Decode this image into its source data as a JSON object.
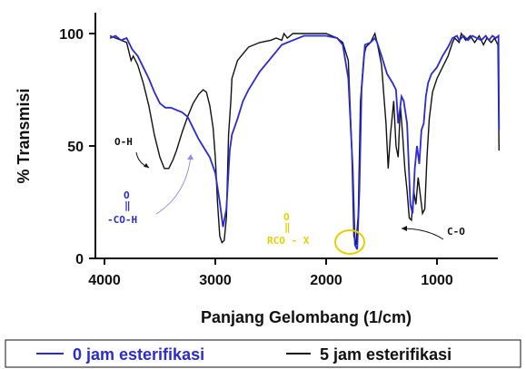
{
  "chart_data": {
    "type": "line",
    "title": "",
    "xlabel": "Panjang Gelombang (1/cm)",
    "ylabel": "% Transmisi",
    "xlim": [
      4000,
      400
    ],
    "ylim": [
      0,
      100
    ],
    "x_ticks": [
      "4000",
      "3000",
      "2000",
      "1000"
    ],
    "y_ticks": [
      "0",
      "50",
      "100"
    ],
    "legend_position": "bottom",
    "series": [
      {
        "name": "0 jam esterifikasi",
        "color": "#2a2ad6",
        "points": [
          [
            3950,
            98
          ],
          [
            3900,
            99
          ],
          [
            3850,
            97
          ],
          [
            3800,
            98
          ],
          [
            3750,
            93
          ],
          [
            3700,
            90
          ],
          [
            3650,
            85
          ],
          [
            3600,
            80
          ],
          [
            3550,
            74
          ],
          [
            3500,
            69
          ],
          [
            3450,
            67
          ],
          [
            3400,
            67
          ],
          [
            3350,
            66
          ],
          [
            3300,
            65
          ],
          [
            3250,
            63
          ],
          [
            3200,
            58
          ],
          [
            3150,
            53
          ],
          [
            3100,
            49
          ],
          [
            3050,
            45
          ],
          [
            3000,
            38
          ],
          [
            2960,
            25
          ],
          [
            2930,
            14
          ],
          [
            2900,
            22
          ],
          [
            2870,
            48
          ],
          [
            2850,
            55
          ],
          [
            2800,
            62
          ],
          [
            2750,
            70
          ],
          [
            2700,
            75
          ],
          [
            2600,
            83
          ],
          [
            2500,
            89
          ],
          [
            2400,
            95
          ],
          [
            2300,
            97
          ],
          [
            2200,
            99
          ],
          [
            2100,
            99
          ],
          [
            2000,
            99
          ],
          [
            1900,
            98
          ],
          [
            1850,
            95
          ],
          [
            1800,
            80
          ],
          [
            1760,
            40
          ],
          [
            1740,
            6
          ],
          [
            1720,
            4
          ],
          [
            1700,
            30
          ],
          [
            1680,
            75
          ],
          [
            1650,
            95
          ],
          [
            1600,
            96
          ],
          [
            1560,
            98
          ],
          [
            1540,
            96
          ],
          [
            1500,
            90
          ],
          [
            1450,
            82
          ],
          [
            1400,
            78
          ],
          [
            1370,
            75
          ],
          [
            1350,
            60
          ],
          [
            1320,
            72
          ],
          [
            1300,
            70
          ],
          [
            1270,
            60
          ],
          [
            1240,
            24
          ],
          [
            1220,
            20
          ],
          [
            1200,
            40
          ],
          [
            1180,
            50
          ],
          [
            1160,
            42
          ],
          [
            1140,
            57
          ],
          [
            1120,
            60
          ],
          [
            1100,
            72
          ],
          [
            1080,
            78
          ],
          [
            1050,
            82
          ],
          [
            1000,
            85
          ],
          [
            950,
            90
          ],
          [
            900,
            94
          ],
          [
            860,
            98
          ],
          [
            820,
            99
          ],
          [
            800,
            97
          ],
          [
            760,
            99
          ],
          [
            720,
            97
          ],
          [
            680,
            99
          ],
          [
            640,
            98
          ],
          [
            600,
            97
          ],
          [
            560,
            99
          ],
          [
            530,
            97
          ],
          [
            500,
            99
          ],
          [
            470,
            98
          ],
          [
            445,
            99
          ],
          [
            440,
            57
          ]
        ]
      },
      {
        "name": "5 jam esterifikasi",
        "color": "#111111",
        "points": [
          [
            3950,
            99
          ],
          [
            3900,
            98
          ],
          [
            3850,
            97
          ],
          [
            3800,
            96
          ],
          [
            3760,
            88
          ],
          [
            3740,
            90
          ],
          [
            3700,
            86
          ],
          [
            3650,
            78
          ],
          [
            3600,
            68
          ],
          [
            3550,
            55
          ],
          [
            3500,
            45
          ],
          [
            3460,
            40
          ],
          [
            3420,
            40
          ],
          [
            3380,
            44
          ],
          [
            3350,
            48
          ],
          [
            3300,
            56
          ],
          [
            3250,
            63
          ],
          [
            3200,
            69
          ],
          [
            3150,
            73
          ],
          [
            3110,
            75
          ],
          [
            3080,
            74
          ],
          [
            3050,
            68
          ],
          [
            3020,
            58
          ],
          [
            3000,
            45
          ],
          [
            2980,
            25
          ],
          [
            2960,
            10
          ],
          [
            2940,
            7
          ],
          [
            2920,
            8
          ],
          [
            2900,
            18
          ],
          [
            2880,
            55
          ],
          [
            2860,
            70
          ],
          [
            2850,
            80
          ],
          [
            2800,
            88
          ],
          [
            2750,
            91
          ],
          [
            2700,
            94
          ],
          [
            2600,
            96
          ],
          [
            2500,
            97
          ],
          [
            2450,
            98
          ],
          [
            2400,
            97
          ],
          [
            2380,
            100
          ],
          [
            2350,
            98
          ],
          [
            2300,
            100
          ],
          [
            2200,
            100
          ],
          [
            2100,
            100
          ],
          [
            2000,
            100
          ],
          [
            1950,
            99
          ],
          [
            1900,
            98
          ],
          [
            1850,
            96
          ],
          [
            1800,
            88
          ],
          [
            1770,
            50
          ],
          [
            1750,
            10
          ],
          [
            1730,
            6
          ],
          [
            1710,
            20
          ],
          [
            1690,
            70
          ],
          [
            1660,
            90
          ],
          [
            1640,
            94
          ],
          [
            1600,
            96
          ],
          [
            1560,
            100
          ],
          [
            1540,
            96
          ],
          [
            1500,
            86
          ],
          [
            1460,
            60
          ],
          [
            1440,
            40
          ],
          [
            1420,
            55
          ],
          [
            1390,
            70
          ],
          [
            1370,
            50
          ],
          [
            1350,
            45
          ],
          [
            1330,
            68
          ],
          [
            1310,
            55
          ],
          [
            1290,
            40
          ],
          [
            1270,
            30
          ],
          [
            1250,
            18
          ],
          [
            1230,
            17
          ],
          [
            1210,
            30
          ],
          [
            1190,
            24
          ],
          [
            1170,
            36
          ],
          [
            1150,
            28
          ],
          [
            1130,
            20
          ],
          [
            1110,
            22
          ],
          [
            1090,
            45
          ],
          [
            1070,
            62
          ],
          [
            1040,
            74
          ],
          [
            1000,
            80
          ],
          [
            950,
            85
          ],
          [
            900,
            90
          ],
          [
            860,
            96
          ],
          [
            840,
            98
          ],
          [
            800,
            96
          ],
          [
            780,
            100
          ],
          [
            740,
            97
          ],
          [
            700,
            99
          ],
          [
            660,
            96
          ],
          [
            620,
            99
          ],
          [
            580,
            95
          ],
          [
            550,
            98
          ],
          [
            510,
            96
          ],
          [
            480,
            98
          ],
          [
            450,
            95
          ],
          [
            440,
            48
          ]
        ]
      }
    ],
    "annotations": [
      {
        "text": "O-H",
        "color": "#111111"
      },
      {
        "text_top": "O",
        "text_mid": "‖",
        "text": "-CO-H",
        "color": "#2a2ad6"
      },
      {
        "text_top": "O",
        "text_mid": "‖",
        "text": "RCO - X",
        "color": "#e8d000"
      },
      {
        "text": "C-O",
        "color": "#111111"
      }
    ]
  }
}
